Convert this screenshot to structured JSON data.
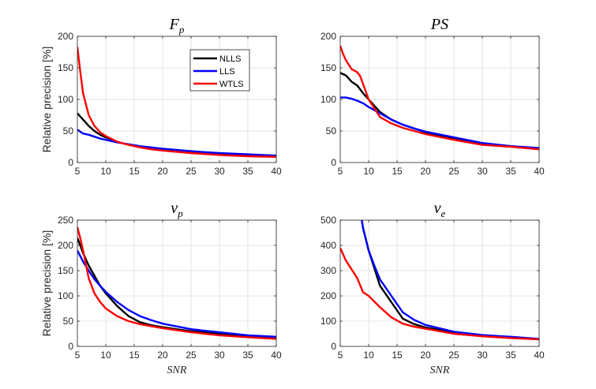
{
  "chart_data": [
    {
      "type": "line",
      "title": "F",
      "title_sub": "p",
      "xlabel": "",
      "ylabel": "Relative precision [%]",
      "xlim": [
        5,
        40
      ],
      "ylim": [
        0,
        200
      ],
      "xticks": [
        "5",
        "10",
        "15",
        "20",
        "25",
        "30",
        "35",
        "40"
      ],
      "yticks": [
        "0",
        "50",
        "100",
        "150",
        "200"
      ],
      "grid": true,
      "legend": true,
      "legend_position": "top-right",
      "series": [
        {
          "name": "NLLS",
          "color": "#000000",
          "x": [
            5,
            6,
            7,
            8,
            9,
            10,
            12,
            14,
            16,
            18,
            20,
            25,
            30,
            35,
            40
          ],
          "y": [
            78,
            68,
            58,
            50,
            44,
            40,
            33,
            28,
            25,
            22,
            20,
            16,
            14,
            12,
            10
          ]
        },
        {
          "name": "LLS",
          "color": "#0000ff",
          "x": [
            5,
            6,
            7,
            8,
            9,
            10,
            12,
            14,
            16,
            18,
            20,
            25,
            30,
            35,
            40
          ],
          "y": [
            52,
            46,
            44,
            41,
            38,
            36,
            32,
            29,
            26,
            24,
            22,
            18,
            15,
            13,
            11
          ]
        },
        {
          "name": "WTLS",
          "color": "#ff0000",
          "x": [
            5,
            5.5,
            6,
            7,
            8,
            9,
            10,
            12,
            14,
            16,
            18,
            20,
            25,
            30,
            35,
            40
          ],
          "y": [
            183,
            145,
            110,
            75,
            58,
            48,
            42,
            33,
            28,
            24,
            21,
            19,
            15,
            12,
            10,
            9
          ]
        }
      ]
    },
    {
      "type": "line",
      "title": "PS",
      "title_sub": "",
      "xlabel": "",
      "ylabel": "",
      "xlim": [
        5,
        40
      ],
      "ylim": [
        0,
        200
      ],
      "xticks": [
        "5",
        "10",
        "15",
        "20",
        "25",
        "30",
        "35",
        "40"
      ],
      "yticks": [
        "0",
        "50",
        "100",
        "150",
        "200"
      ],
      "grid": true,
      "legend": false,
      "series": [
        {
          "name": "NLLS",
          "color": "#000000",
          "x": [
            5,
            6,
            7,
            8,
            9,
            10,
            12,
            14,
            16,
            18,
            20,
            25,
            30,
            35,
            40
          ],
          "y": [
            142,
            138,
            128,
            122,
            110,
            100,
            80,
            68,
            60,
            54,
            48,
            38,
            30,
            26,
            22
          ]
        },
        {
          "name": "LLS",
          "color": "#0000ff",
          "x": [
            5,
            6,
            7,
            8,
            9,
            10,
            12,
            14,
            16,
            18,
            20,
            25,
            30,
            35,
            40
          ],
          "y": [
            103,
            103,
            101,
            98,
            94,
            88,
            78,
            68,
            60,
            54,
            49,
            40,
            31,
            26,
            23
          ]
        },
        {
          "name": "WTLS",
          "color": "#ff0000",
          "x": [
            5,
            5.5,
            6,
            7,
            8,
            8.5,
            9,
            10,
            12,
            14,
            16,
            18,
            20,
            25,
            30,
            35,
            40
          ],
          "y": [
            185,
            172,
            162,
            148,
            143,
            137,
            125,
            100,
            72,
            62,
            55,
            50,
            45,
            36,
            28,
            25,
            21
          ]
        }
      ]
    },
    {
      "type": "line",
      "title": "v",
      "title_sub": "p",
      "xlabel": "SNR",
      "ylabel": "Relative precision [%]",
      "xlim": [
        5,
        40
      ],
      "ylim": [
        0,
        250
      ],
      "xticks": [
        "5",
        "10",
        "15",
        "20",
        "25",
        "30",
        "35",
        "40"
      ],
      "yticks": [
        "0",
        "50",
        "100",
        "150",
        "200",
        "250"
      ],
      "grid": true,
      "legend": false,
      "series": [
        {
          "name": "NLLS",
          "color": "#000000",
          "x": [
            5,
            6,
            7,
            8,
            9,
            10,
            12,
            14,
            16,
            18,
            20,
            25,
            30,
            35,
            40
          ],
          "y": [
            215,
            185,
            160,
            140,
            120,
            105,
            80,
            60,
            48,
            42,
            38,
            30,
            25,
            20,
            16
          ]
        },
        {
          "name": "LLS",
          "color": "#0000ff",
          "x": [
            5,
            6,
            7,
            8,
            9,
            10,
            12,
            14,
            16,
            18,
            20,
            25,
            30,
            35,
            40
          ],
          "y": [
            190,
            168,
            150,
            133,
            120,
            108,
            88,
            72,
            60,
            52,
            45,
            34,
            28,
            22,
            19
          ]
        },
        {
          "name": "WTLS",
          "color": "#ff0000",
          "x": [
            5,
            5.5,
            6,
            7,
            8,
            9,
            10,
            12,
            14,
            16,
            18,
            20,
            25,
            30,
            35,
            40
          ],
          "y": [
            236,
            215,
            190,
            135,
            105,
            88,
            75,
            60,
            50,
            44,
            40,
            36,
            28,
            22,
            18,
            15
          ]
        }
      ]
    },
    {
      "type": "line",
      "title": "v",
      "title_sub": "e",
      "xlabel": "SNR",
      "ylabel": "",
      "xlim": [
        5,
        40
      ],
      "ylim": [
        0,
        500
      ],
      "xticks": [
        "5",
        "10",
        "15",
        "20",
        "25",
        "30",
        "35",
        "40"
      ],
      "yticks": [
        "0",
        "100",
        "200",
        "300",
        "400",
        "500"
      ],
      "grid": true,
      "legend": false,
      "series": [
        {
          "name": "NLLS",
          "color": "#000000",
          "x": [
            8.8,
            9,
            10,
            11,
            12,
            14,
            16,
            18,
            20,
            25,
            30,
            35,
            40
          ],
          "y": [
            500,
            470,
            380,
            310,
            240,
            175,
            110,
            88,
            75,
            55,
            42,
            35,
            28
          ]
        },
        {
          "name": "LLS",
          "color": "#0000ff",
          "x": [
            8.8,
            9,
            10,
            11,
            12,
            14,
            16,
            18,
            20,
            25,
            30,
            35,
            40
          ],
          "y": [
            500,
            470,
            380,
            320,
            265,
            200,
            135,
            105,
            85,
            58,
            45,
            38,
            30
          ]
        },
        {
          "name": "WTLS",
          "color": "#ff0000",
          "x": [
            5,
            6,
            7,
            8,
            9,
            10,
            12,
            14,
            16,
            18,
            20,
            25,
            30,
            35,
            40
          ],
          "y": [
            390,
            340,
            305,
            270,
            215,
            200,
            155,
            115,
            90,
            78,
            70,
            50,
            40,
            33,
            28
          ]
        }
      ]
    }
  ]
}
